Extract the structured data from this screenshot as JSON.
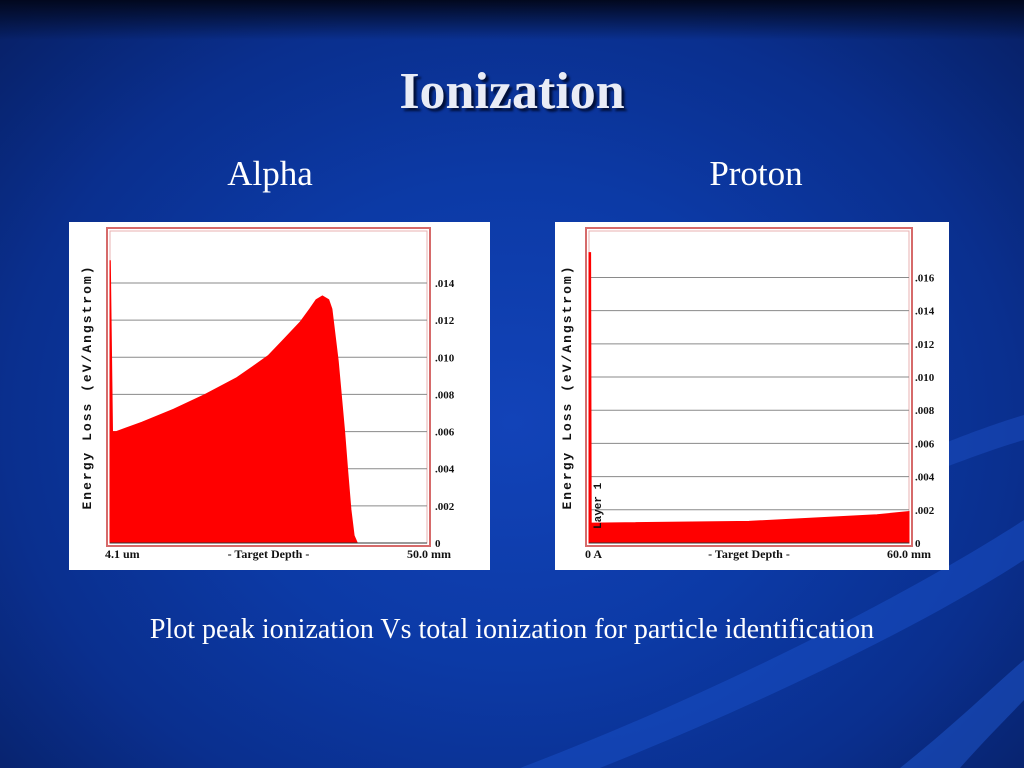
{
  "slide": {
    "title": "Ionization",
    "caption": "Plot peak ionization Vs total ionization for particle identification"
  },
  "colors": {
    "background": "#0c3aa6",
    "fill": "#ff0000",
    "frame": "#d66a6a",
    "grid": "#8a8a8a"
  },
  "chart_data": [
    {
      "type": "area",
      "title": "Alpha",
      "ylabel": "Energy Loss (eV/Angstrom)",
      "xlabel": "- Target Depth -",
      "x_left_label": "4.1 um",
      "x_right_label": "50.0 mm",
      "yticks": [
        "0",
        ".002",
        ".004",
        ".006",
        ".008",
        ".010",
        ".012",
        ".014"
      ],
      "ylim": [
        0,
        0.0168
      ],
      "xlim": [
        0,
        1
      ],
      "grid": true,
      "x": [
        0,
        0.001,
        0.008,
        0.02,
        0.1,
        0.2,
        0.3,
        0.4,
        0.45,
        0.5,
        0.55,
        0.6,
        0.63,
        0.65,
        0.67,
        0.69,
        0.7,
        0.72,
        0.74,
        0.75,
        0.76,
        0.77,
        0.78,
        1
      ],
      "y": [
        0.0152,
        0.0152,
        0.006,
        0.006,
        0.0065,
        0.0072,
        0.008,
        0.0089,
        0.0095,
        0.0101,
        0.011,
        0.0119,
        0.0126,
        0.0131,
        0.0133,
        0.0131,
        0.0126,
        0.0098,
        0.006,
        0.0038,
        0.0018,
        0.0004,
        0,
        0
      ]
    },
    {
      "type": "area",
      "title": "Proton",
      "ylabel": "Energy Loss (eV/Angstrom)",
      "xlabel": "- Target Depth -",
      "x_left_label": "0 A",
      "x_right_label": "60.0 mm",
      "layer_label": "Layer 1",
      "yticks": [
        "0",
        ".002",
        ".004",
        ".006",
        ".008",
        ".010",
        ".012",
        ".014",
        ".016"
      ],
      "ylim": [
        0,
        0.0188
      ],
      "xlim": [
        0,
        1
      ],
      "grid": true,
      "x": [
        0,
        0.005,
        0.007,
        0.015,
        0.5,
        0.9,
        1
      ],
      "y": [
        0.0175,
        0.0175,
        0.0012,
        0.0012,
        0.0013,
        0.0017,
        0.0019
      ]
    }
  ]
}
